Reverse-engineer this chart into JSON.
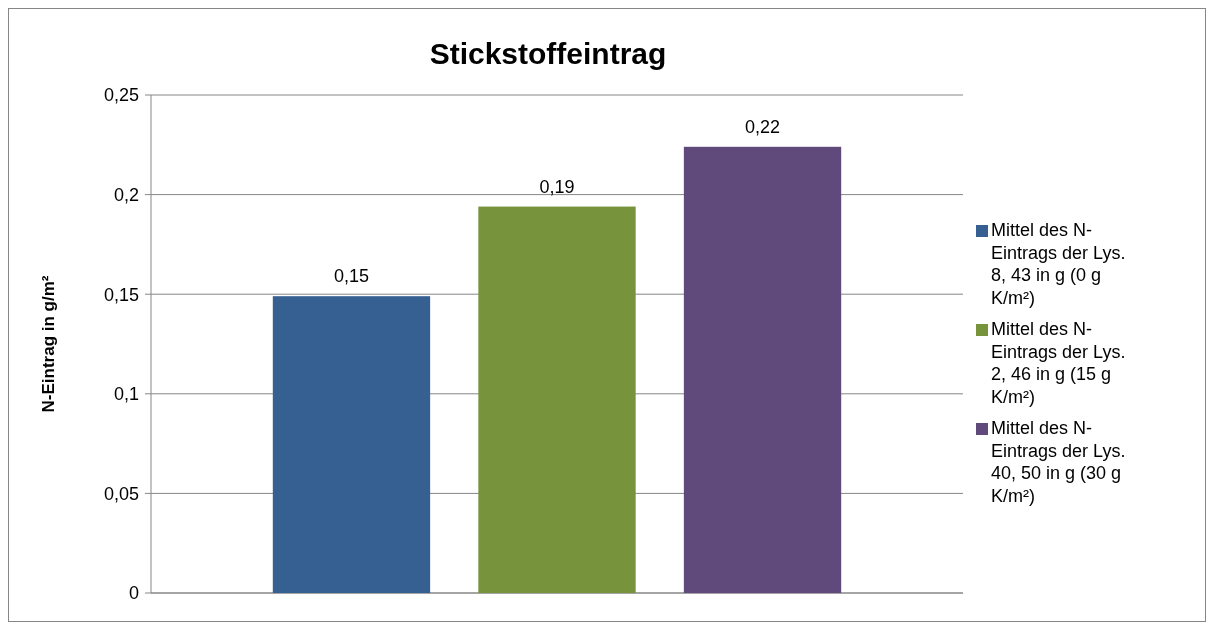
{
  "chart_data": {
    "type": "bar",
    "title": "Stickstoffeintrag",
    "ylabel": "N-Eintrag in g/m²",
    "categories": [
      null
    ],
    "series": [
      {
        "name": "Mittel des N-Eintrags der Lys. 8, 43 in g (0 g K/m²)",
        "color": "#376092",
        "values": [
          0.149
        ],
        "value_labels": [
          "0,15"
        ]
      },
      {
        "name": "Mittel des N-Eintrags der Lys. 2, 46 in g (15 g K/m²)",
        "color": "#77933c",
        "values": [
          0.194
        ],
        "value_labels": [
          "0,19"
        ]
      },
      {
        "name": "Mittel des N-Eintrags der Lys. 40, 50 in g (30 g K/m²)",
        "color": "#604a7b",
        "values": [
          0.224
        ],
        "value_labels": [
          "0,22"
        ]
      }
    ],
    "ylim": [
      0,
      0.25
    ],
    "yticks": [
      {
        "value": 0,
        "label": "0"
      },
      {
        "value": 0.05,
        "label": "0,05"
      },
      {
        "value": 0.1,
        "label": "0,1"
      },
      {
        "value": 0.15,
        "label": "0,15"
      },
      {
        "value": 0.2,
        "label": "0,2"
      },
      {
        "value": 0.25,
        "label": "0,25"
      }
    ],
    "grid": "y",
    "legend": "right"
  }
}
